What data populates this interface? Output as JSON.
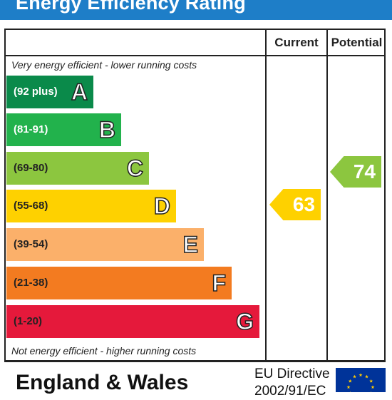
{
  "title": "Energy Efficiency Rating",
  "columns": {
    "current": "Current",
    "potential": "Potential"
  },
  "notes": {
    "top": "Very energy efficient - lower running costs",
    "bottom": "Not energy efficient - higher running costs"
  },
  "bands": [
    {
      "range": "(92 plus)",
      "letter": "A",
      "color": "#0a8a4a",
      "text_color": "#ffffff"
    },
    {
      "range": "(81-91)",
      "letter": "B",
      "color": "#22b24c",
      "text_color": "#ffffff"
    },
    {
      "range": "(69-80)",
      "letter": "C",
      "color": "#8cc63f",
      "text_color": "#222222"
    },
    {
      "range": "(55-68)",
      "letter": "D",
      "color": "#fed100",
      "text_color": "#222222"
    },
    {
      "range": "(39-54)",
      "letter": "E",
      "color": "#fbb06a",
      "text_color": "#222222"
    },
    {
      "range": "(21-38)",
      "letter": "F",
      "color": "#f37b20",
      "text_color": "#222222"
    },
    {
      "range": "(1-20)",
      "letter": "G",
      "color": "#e5193b",
      "text_color": "#222222"
    }
  ],
  "ratings": {
    "current": {
      "value": "63",
      "band": "D",
      "color": "#fed100"
    },
    "potential": {
      "value": "74",
      "band": "C",
      "color": "#8cc63f"
    }
  },
  "footer": {
    "region": "England & Wales",
    "directive_line1": "EU Directive",
    "directive_line2": "2002/91/EC"
  },
  "colors": {
    "title_bar": "#1e7ec8",
    "eu_flag": "#003399",
    "eu_stars": "#ffcc00"
  }
}
